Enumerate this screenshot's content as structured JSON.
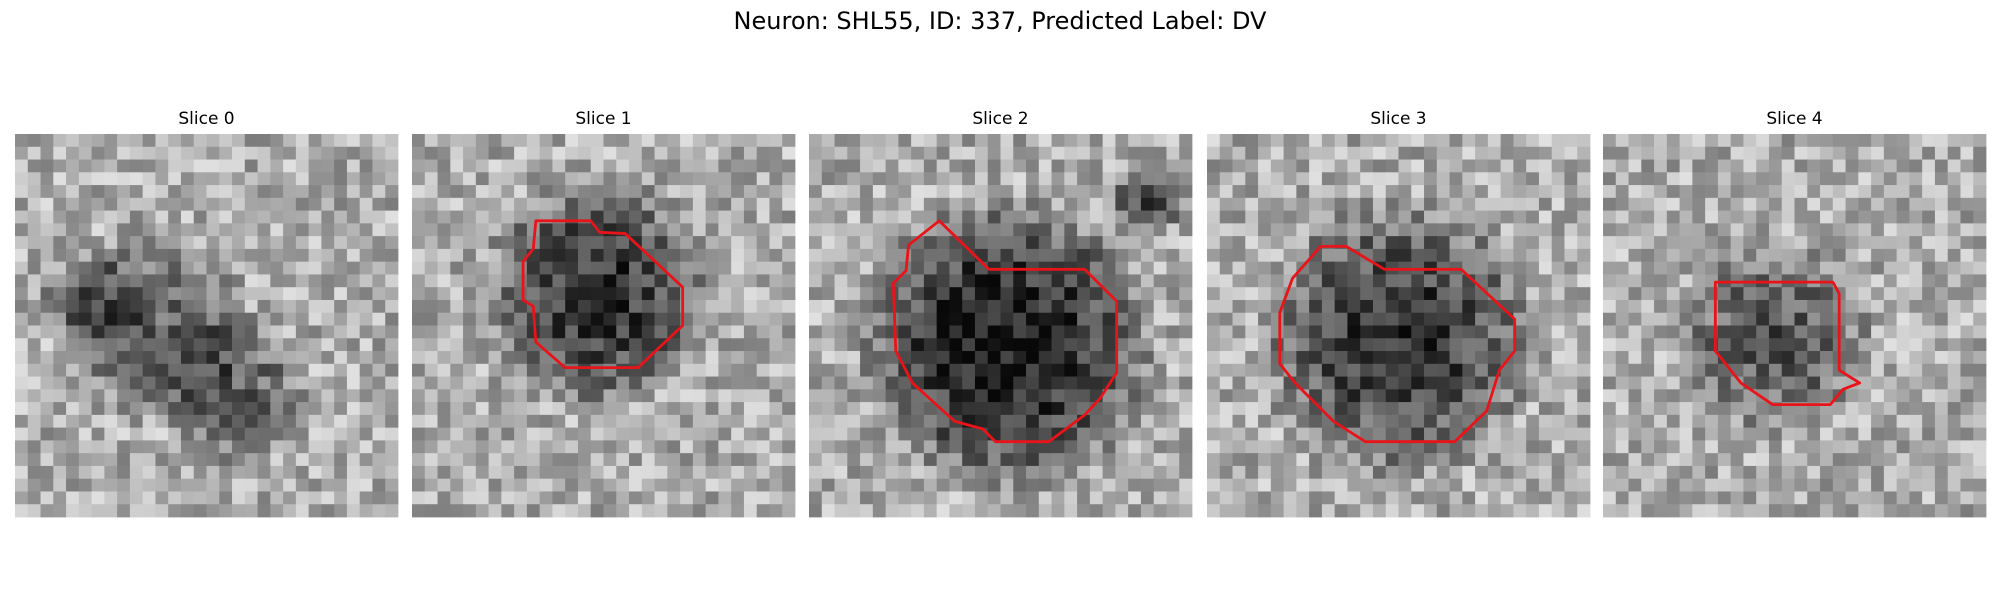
{
  "title": "Neuron: SHL55, ID: 337, Predicted Label: DV",
  "panels": [
    {
      "title": "Slice 0"
    },
    {
      "title": "Slice 1"
    },
    {
      "title": "Slice 2"
    },
    {
      "title": "Slice 3"
    },
    {
      "title": "Slice 4"
    }
  ]
}
